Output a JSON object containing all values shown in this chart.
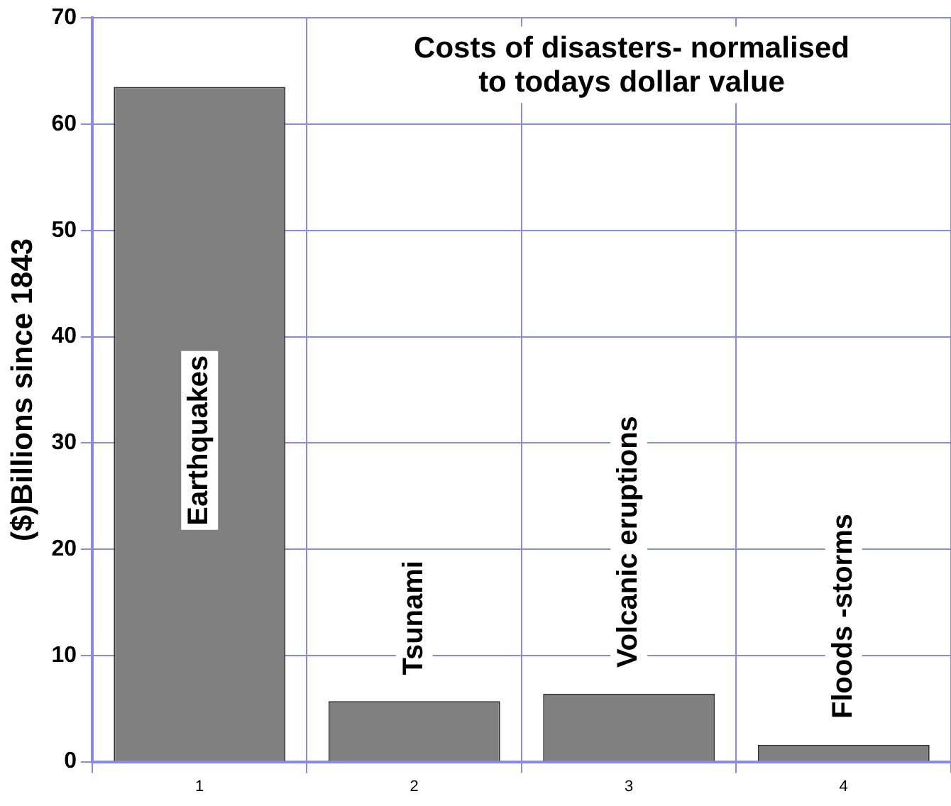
{
  "chart_data": {
    "type": "bar",
    "title": [
      "Costs of disasters- normalised",
      "to todays dollar value"
    ],
    "ylabel": "($)Billions since 1843",
    "categories": [
      "1",
      "2",
      "3",
      "4"
    ],
    "values": [
      63.5,
      5.7,
      6.4,
      1.6
    ],
    "color": "#808080",
    "ylim": [
      0,
      70
    ],
    "yticks": [
      0,
      10,
      20,
      30,
      40,
      50,
      60,
      70
    ],
    "grid": true,
    "legend": false,
    "annotations": [
      "Earthquakes",
      "Tsunami",
      "Volcanic eruptions",
      "Floods -storms"
    ]
  }
}
